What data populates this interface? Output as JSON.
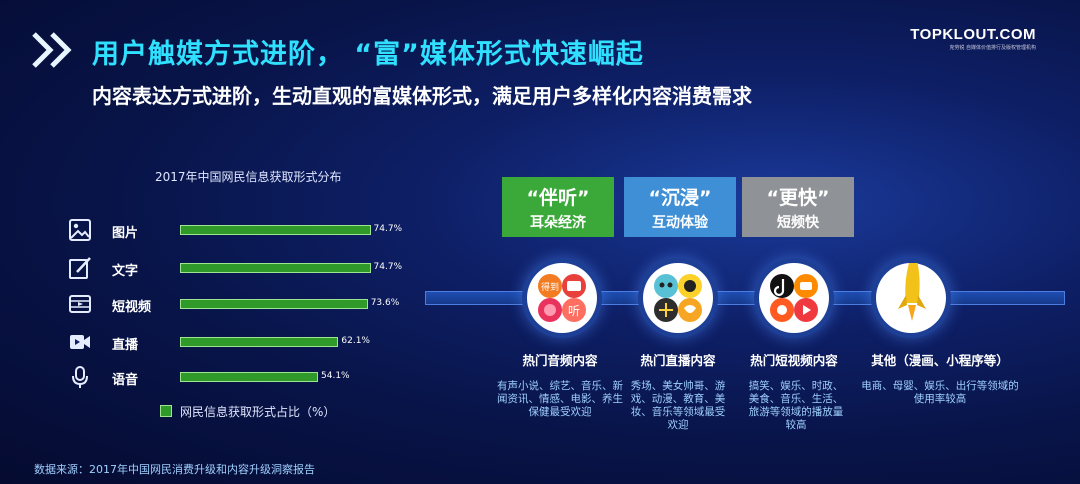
{
  "header": {
    "title": "用户触媒方式进阶， “富”媒体形式快速崛起",
    "subtitle": "内容表达方式进阶，生动直观的富媒体形式，满足用户多样化内容消费需求",
    "logo_text": "TOPKLOUT.COM",
    "logo_sub": "克劳锐 自媒体价值排行及版权管理机构"
  },
  "chart_data": {
    "type": "bar",
    "orientation": "horizontal",
    "title": "2017年中国网民信息获取形式分布",
    "categories": [
      "图片",
      "文字",
      "短视频",
      "直播",
      "语音"
    ],
    "series": [
      {
        "name": "网民信息获取形式占比（%）",
        "values": [
          74.7,
          74.7,
          73.6,
          62.1,
          54.1
        ],
        "color": "#2f9a2a"
      }
    ],
    "value_labels": [
      "74.7%",
      "74.7%",
      "73.6%",
      "62.1%",
      "54.1%"
    ],
    "icons": [
      "image-icon",
      "edit-icon",
      "film-icon",
      "video-camera-icon",
      "microphone-icon"
    ],
    "legend": "网民信息获取形式占比（%）",
    "legend_position": "bottom"
  },
  "source": "数据来源：2017年中国网民消费升级和内容升级洞察报告",
  "tags": [
    {
      "big": "“伴听”",
      "small": "耳朵经济",
      "color": "#3aa93a"
    },
    {
      "big": "“沉浸”",
      "small": "互动体验",
      "color": "#3e8fd6"
    },
    {
      "big": "“更快”",
      "small": "短频快",
      "color": "#8f9296"
    }
  ],
  "sections": [
    {
      "title": "热门音频内容",
      "desc": "有声小说、综艺、音乐、新闻资讯、情感、电影、养生保健最受欢迎",
      "icons": [
        "dedao-app-icon",
        "ximalaya-app-icon",
        "lizhi-app-icon",
        "ting-app-icon"
      ]
    },
    {
      "title": "热门直播内容",
      "desc": "秀场、美女帅哥、游戏、动漫、教育、美妆、音乐等领域最受欢迎",
      "icons": [
        "kitty-live-icon",
        "momo-app-icon",
        "dots-app-icon",
        "huya-app-icon"
      ]
    },
    {
      "title": "热门短视频内容",
      "desc": "搞笑、娱乐、时政、美食、音乐、生活、旅游等领域的播放量较高",
      "icons": [
        "douyin-app-icon",
        "kuaishou-app-icon",
        "video-app-icon",
        "play-app-icon"
      ]
    },
    {
      "title": "其他（漫画、小程序等）",
      "desc": "电商、母婴、娱乐、出行等领域的使用率较高",
      "icons": [
        "rocket-icon"
      ]
    }
  ],
  "app_icon_texts": {
    "dedao": "得到",
    "ting": "听"
  }
}
